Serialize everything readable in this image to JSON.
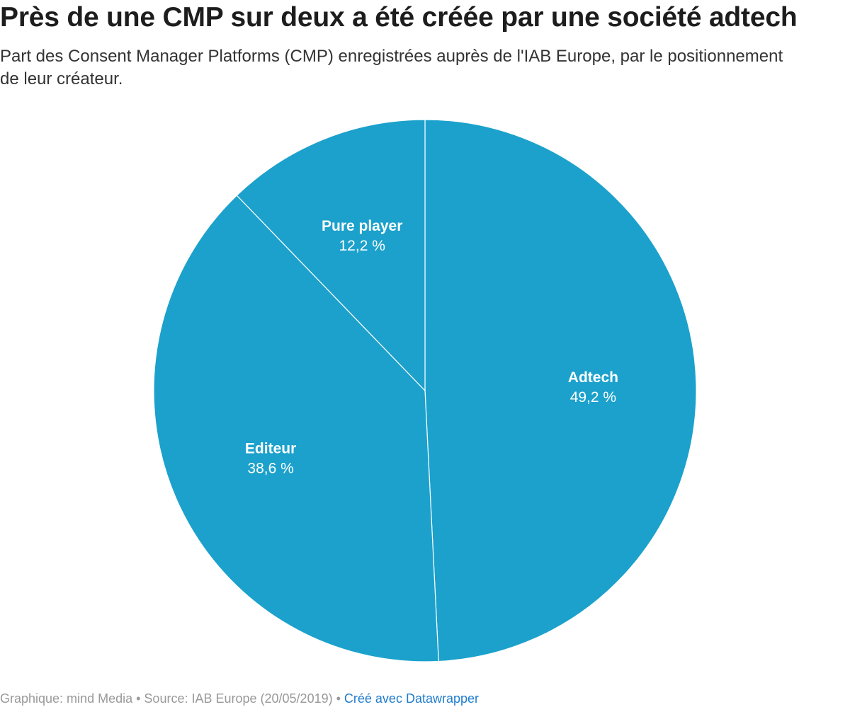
{
  "header": {
    "title": "Près de une CMP sur deux a été créée par une société adtech",
    "subtitle": "Part des Consent Manager Platforms (CMP) enregistrées auprès de l'IAB Europe, par le positionnement de leur créateur."
  },
  "chart_data": {
    "type": "pie",
    "title": "Près de une CMP sur deux a été créée par une société adtech",
    "slices": [
      {
        "name": "Adtech",
        "value": 49.2,
        "label": "49,2 %"
      },
      {
        "name": "Editeur",
        "value": 38.6,
        "label": "38,6 %"
      },
      {
        "name": "Pure player",
        "value": 12.2,
        "label": "12,2 %"
      }
    ],
    "colors": {
      "slice": "#1ba1cc",
      "border": "#ffffff"
    }
  },
  "footer": {
    "credit": "Graphique: mind Media",
    "separator": " • ",
    "source": "Source: IAB Europe (20/05/2019)",
    "made_with": "Créé avec Datawrapper"
  }
}
